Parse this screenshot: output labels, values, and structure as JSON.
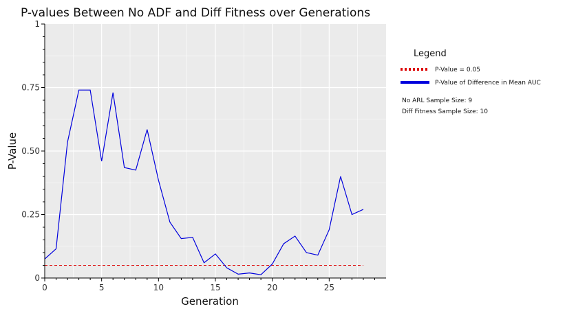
{
  "chart_data": {
    "type": "line",
    "title": "P-values Between No ADF and Diff Fitness over Generations",
    "xlabel": "Generation",
    "ylabel": "P-Value",
    "xlim": [
      0,
      30
    ],
    "ylim": [
      0,
      1
    ],
    "x_ticks": [
      "0",
      "5",
      "10",
      "15",
      "20",
      "25"
    ],
    "y_ticks": [
      "0",
      "0.25",
      "0.50",
      "0.75",
      "1"
    ],
    "grid": true,
    "legend_position": "right",
    "legend": {
      "title": "Legend",
      "entries": [
        "P-Value = 0.05",
        "P-Value of Difference in Mean AUC"
      ]
    },
    "notes": [
      "No ARL Sample Size: 9",
      "Diff Fitness Sample Size: 10"
    ],
    "threshold": {
      "value": 0.05,
      "x_range": [
        0,
        28
      ],
      "color": "#dd0000"
    },
    "series": [
      {
        "color": "#0000dd",
        "x": [
          0,
          1,
          2,
          3,
          4,
          5,
          6,
          7,
          8,
          9,
          10,
          11,
          12,
          13,
          14,
          15,
          16,
          17,
          18,
          19,
          20,
          21,
          22,
          23,
          24,
          25,
          26,
          27,
          28
        ],
        "values": [
          0.075,
          0.115,
          0.535,
          0.74,
          0.74,
          0.46,
          0.73,
          0.435,
          0.425,
          0.585,
          0.385,
          0.22,
          0.155,
          0.16,
          0.06,
          0.095,
          0.04,
          0.015,
          0.02,
          0.013,
          0.055,
          0.135,
          0.165,
          0.1,
          0.09,
          0.19,
          0.4,
          0.25,
          0.27
        ]
      }
    ]
  }
}
